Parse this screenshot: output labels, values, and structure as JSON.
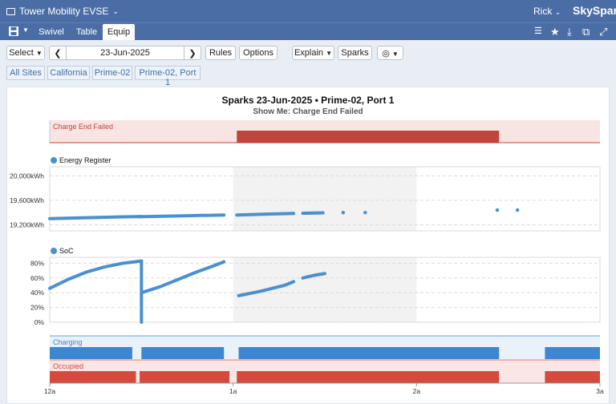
{
  "app": {
    "title": "Tower Mobility EVSE",
    "user": "Rick",
    "brand": "SkySpark"
  },
  "tabs": [
    "Swivel",
    "Table",
    "Equip"
  ],
  "active_tab": "Equip",
  "toolbar": {
    "select_label": "Select",
    "date": "23-Jun-2025",
    "rules_label": "Rules",
    "options_label": "Options",
    "explain_label": "Explain",
    "sparks_label": "Sparks"
  },
  "breadcrumbs": [
    "All Sites",
    "California",
    "Prime-02",
    "Prime-02, Port 1"
  ],
  "chart": {
    "title": "Sparks 23-Jun-2025 • Prime-02, Port 1",
    "subtitle": "Show Me: Charge End Failed",
    "spark_label": "Charge End Failed",
    "energy_label": "Energy Register",
    "soc_label": "SoC",
    "charging_label": "Charging",
    "occupied_label": "Occupied",
    "x_ticks": [
      "12a",
      "1a",
      "2a",
      "3a"
    ],
    "energy_ticks": [
      "20,000kWh",
      "19,600kWh",
      "19,200kWh"
    ],
    "soc_ticks": [
      "80%",
      "60%",
      "40%",
      "20%",
      "0%"
    ],
    "colors": {
      "spark": "#c0453a",
      "spark_light": "#f8e4e2",
      "series": "#4a90d0",
      "charging": "#3d86d2",
      "charging_light": "#e9f1f9",
      "occupied": "#d64a3d",
      "occupied_light": "#fae6e4",
      "highlight": "#f2f2f2"
    }
  },
  "chart_data": {
    "type": "line",
    "x_range_hours": [
      0,
      3
    ],
    "highlight_hours": [
      1.0,
      2.0
    ],
    "spark_intervals_hours": [
      [
        1.02,
        2.45
      ]
    ],
    "energy_register": {
      "unit": "kWh",
      "ylim": [
        19100,
        20150
      ],
      "segments": [
        {
          "x": [
            0.0,
            0.2,
            0.4,
            0.5
          ],
          "y": [
            19300,
            19315,
            19330,
            19335
          ]
        },
        {
          "x": [
            0.48,
            0.7,
            0.95
          ],
          "y": [
            19332,
            19345,
            19360
          ]
        },
        {
          "x": [
            1.02,
            1.2,
            1.33
          ],
          "y": [
            19360,
            19375,
            19385
          ]
        },
        {
          "x": [
            1.38,
            1.49
          ],
          "y": [
            19388,
            19395
          ]
        }
      ],
      "points": [
        {
          "x": 1.6,
          "y": 19400
        },
        {
          "x": 1.72,
          "y": 19400
        },
        {
          "x": 2.44,
          "y": 19440
        },
        {
          "x": 2.55,
          "y": 19440
        }
      ]
    },
    "soc": {
      "unit": "%",
      "ylim": [
        0,
        88
      ],
      "segments": [
        {
          "x": [
            0.0,
            0.1,
            0.2,
            0.3,
            0.4,
            0.5
          ],
          "y": [
            46,
            58,
            68,
            75,
            80,
            83
          ]
        },
        {
          "x": [
            0.5,
            0.5
          ],
          "y": [
            83,
            0
          ]
        },
        {
          "x": [
            0.5,
            0.6,
            0.7,
            0.8,
            0.9,
            0.95
          ],
          "y": [
            40,
            48,
            58,
            68,
            77,
            82
          ]
        },
        {
          "x": [
            1.03,
            1.15,
            1.28,
            1.33
          ],
          "y": [
            36,
            42,
            50,
            55
          ]
        },
        {
          "x": [
            1.38,
            1.45,
            1.5
          ],
          "y": [
            60,
            64,
            66
          ]
        }
      ]
    },
    "charging_on_hours": [
      [
        0.0,
        0.45
      ],
      [
        0.5,
        0.95
      ],
      [
        1.03,
        2.45
      ],
      [
        2.7,
        3.0
      ]
    ],
    "occupied_on_hours": [
      [
        0.0,
        0.47
      ],
      [
        0.49,
        0.98
      ],
      [
        1.02,
        2.45
      ],
      [
        2.7,
        3.0
      ]
    ]
  }
}
